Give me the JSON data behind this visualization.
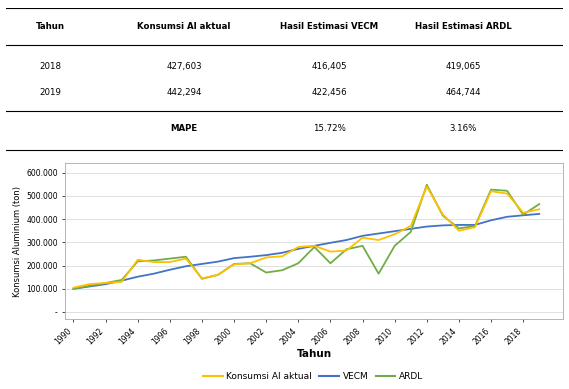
{
  "years": [
    1990,
    1991,
    1992,
    1993,
    1994,
    1995,
    1996,
    1997,
    1998,
    1999,
    2000,
    2001,
    2002,
    2003,
    2004,
    2005,
    2006,
    2007,
    2008,
    2009,
    2010,
    2011,
    2012,
    2013,
    2014,
    2015,
    2016,
    2017,
    2018,
    2019
  ],
  "actual": [
    105000,
    120000,
    125000,
    130000,
    225000,
    215000,
    215000,
    230000,
    145000,
    160000,
    205000,
    210000,
    235000,
    240000,
    280000,
    285000,
    260000,
    265000,
    320000,
    310000,
    335000,
    370000,
    540000,
    420000,
    350000,
    365000,
    520000,
    510000,
    427603,
    442294
  ],
  "vecm": [
    100000,
    110000,
    120000,
    135000,
    152000,
    165000,
    182000,
    197000,
    207000,
    217000,
    232000,
    238000,
    245000,
    255000,
    272000,
    285000,
    298000,
    310000,
    328000,
    338000,
    348000,
    358000,
    368000,
    373000,
    375000,
    375000,
    395000,
    410000,
    416405,
    422456
  ],
  "ardl": [
    100000,
    113000,
    125000,
    138000,
    218000,
    222000,
    230000,
    238000,
    143000,
    160000,
    207000,
    210000,
    170000,
    180000,
    210000,
    280000,
    210000,
    270000,
    285000,
    165000,
    285000,
    345000,
    548000,
    415000,
    360000,
    370000,
    527000,
    522000,
    419065,
    464744
  ],
  "yticks": [
    0,
    100000,
    200000,
    300000,
    400000,
    500000,
    600000
  ],
  "ytick_labels": [
    "-",
    "100.000",
    "200.000",
    "300.000",
    "400.000",
    "500.000",
    "600.000"
  ],
  "xlabel": "Tahun",
  "ylabel": "Konsumsi Aluminium (ton)",
  "color_actual": "#FFC000",
  "color_vecm": "#4472C4",
  "color_ardl": "#70AD47",
  "legend_actual": "Konsumsi Al aktual",
  "legend_vecm": "VECM",
  "legend_ardl": "ARDL",
  "table_headers": [
    "Tahun",
    "Konsumsi Al aktual",
    "Hasil Estimasi VECM",
    "Hasil Estimasi ARDL"
  ],
  "table_rows": [
    [
      "2018",
      "427,603",
      "416,405",
      "419,065"
    ],
    [
      "2019",
      "442,294",
      "422,456",
      "464,744"
    ],
    [
      "",
      "MAPE",
      "15.72%",
      "3.16%"
    ]
  ],
  "bg_color": "#FFFFFF",
  "chart_bg": "#FFFFFF",
  "grid_color": "#D3D3D3",
  "box_color": "#AAAAAA"
}
